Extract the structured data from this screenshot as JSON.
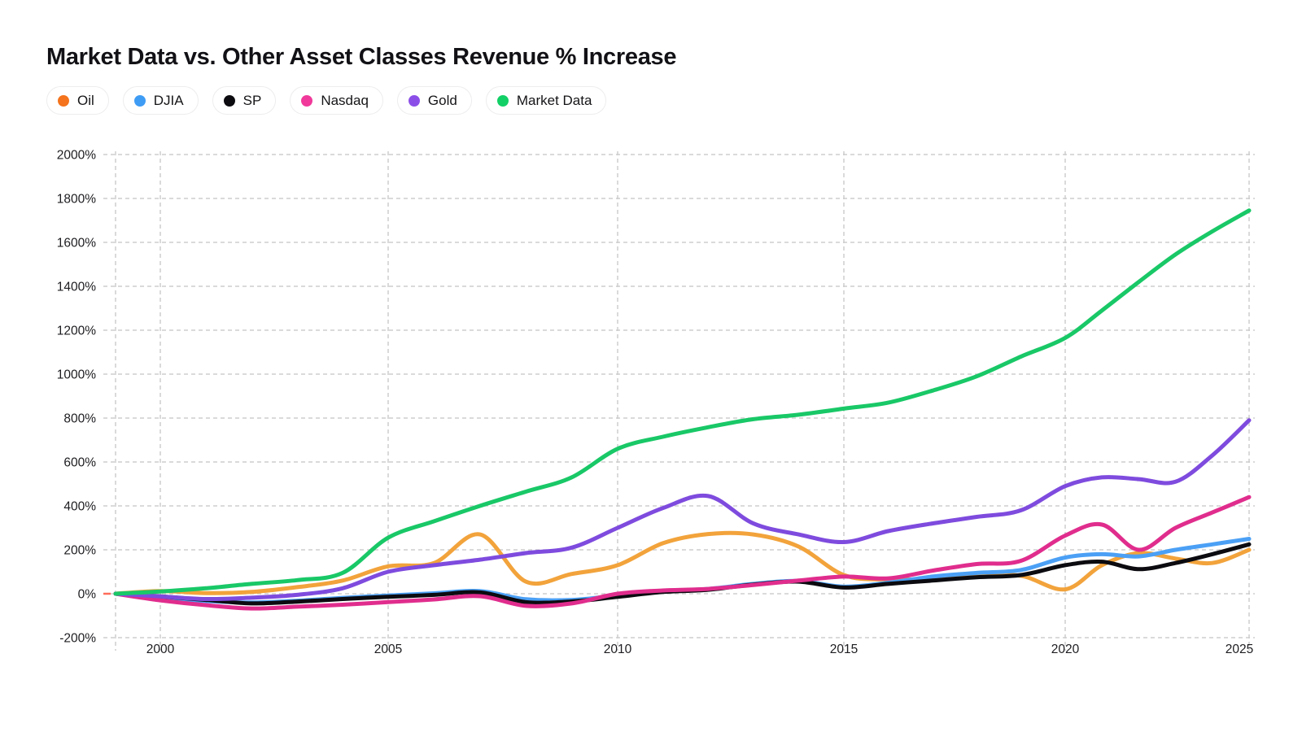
{
  "page": {
    "title": "Market Data vs. Other Asset Classes Revenue % Increase"
  },
  "legend": {
    "position": "top-left",
    "items": [
      {
        "label": "Oil",
        "dot_color": "#F4731C"
      },
      {
        "label": "DJIA",
        "dot_color": "#3E9CF5"
      },
      {
        "label": "SP",
        "dot_color": "#0B0B10"
      },
      {
        "label": "Nasdaq",
        "dot_color": "#F0399A"
      },
      {
        "label": "Gold",
        "dot_color": "#8B4FE8"
      },
      {
        "label": "Market Data",
        "dot_color": "#12D066"
      }
    ]
  },
  "chart_data": {
    "type": "line",
    "title": "Market Data vs. Other Asset Classes Revenue % Increase",
    "xlabel": "",
    "ylabel": "",
    "ylim": [
      -200,
      2000
    ],
    "grid": "dashed-both-axes",
    "legend_position": "top-left-pills",
    "x": [
      1999,
      2000,
      2001,
      2002,
      2003,
      2004,
      2005,
      2006,
      2007,
      2008,
      2009,
      2010,
      2011,
      2012,
      2013,
      2014,
      2015,
      2016,
      2017,
      2018,
      2019,
      2020,
      2021,
      2022,
      2023,
      2024,
      2025
    ],
    "x_tick_labels": [
      "2000",
      "2005",
      "2010",
      "2015",
      "2020",
      "2025"
    ],
    "x_tick_years": [
      2000,
      2005,
      2010,
      2015,
      2020,
      2025
    ],
    "y_tick_labels": [
      "2000%",
      "1800%",
      "1600%",
      "1400%",
      "1200%",
      "1000%",
      "800%",
      "600%",
      "400%",
      "200%",
      "0%",
      "-200%"
    ],
    "y_tick_values": [
      2000,
      1800,
      1600,
      1400,
      1200,
      1000,
      800,
      600,
      400,
      200,
      0,
      -200
    ],
    "series": [
      {
        "name": "Oil",
        "line_color": "#F2A33B",
        "values": [
          0,
          12,
          3,
          8,
          30,
          60,
          125,
          140,
          270,
          55,
          90,
          130,
          230,
          272,
          270,
          215,
          85,
          65,
          68,
          78,
          82,
          20,
          130,
          185,
          160,
          140,
          200
        ]
      },
      {
        "name": "DJIA",
        "line_color": "#4BA0F5",
        "values": [
          0,
          -19,
          -33,
          -40,
          -32,
          -19,
          -8,
          2,
          12,
          -25,
          -28,
          -8,
          12,
          22,
          45,
          58,
          32,
          50,
          78,
          95,
          108,
          165,
          180,
          170,
          200,
          225,
          250
        ]
      },
      {
        "name": "SP",
        "line_color": "#0B0B10",
        "values": [
          0,
          -12,
          -28,
          -44,
          -36,
          -24,
          -14,
          -5,
          6,
          -38,
          -35,
          -14,
          8,
          18,
          42,
          55,
          28,
          45,
          60,
          75,
          85,
          130,
          146,
          112,
          140,
          180,
          225
        ]
      },
      {
        "name": "Nasdaq",
        "line_color": "#E02D8D",
        "values": [
          0,
          -30,
          -52,
          -67,
          -59,
          -50,
          -38,
          -26,
          -11,
          -55,
          -44,
          0,
          15,
          22,
          40,
          60,
          78,
          70,
          105,
          135,
          150,
          265,
          315,
          200,
          300,
          370,
          440
        ]
      },
      {
        "name": "Gold",
        "line_color": "#7E4BDE",
        "values": [
          0,
          -12,
          -24,
          -18,
          -5,
          25,
          100,
          130,
          155,
          185,
          210,
          300,
          390,
          445,
          320,
          270,
          235,
          285,
          320,
          350,
          380,
          490,
          530,
          522,
          510,
          630,
          790
        ]
      },
      {
        "name": "Market Data",
        "line_color": "#19C867",
        "values": [
          0,
          10,
          25,
          45,
          62,
          95,
          255,
          330,
          400,
          465,
          530,
          660,
          715,
          758,
          795,
          815,
          843,
          870,
          925,
          990,
          1080,
          1165,
          1290,
          1420,
          1545,
          1650,
          1745
        ]
      }
    ],
    "zero_axis_marker_color": "#FF6D5A",
    "gridline_color": "#CDCDCD"
  }
}
